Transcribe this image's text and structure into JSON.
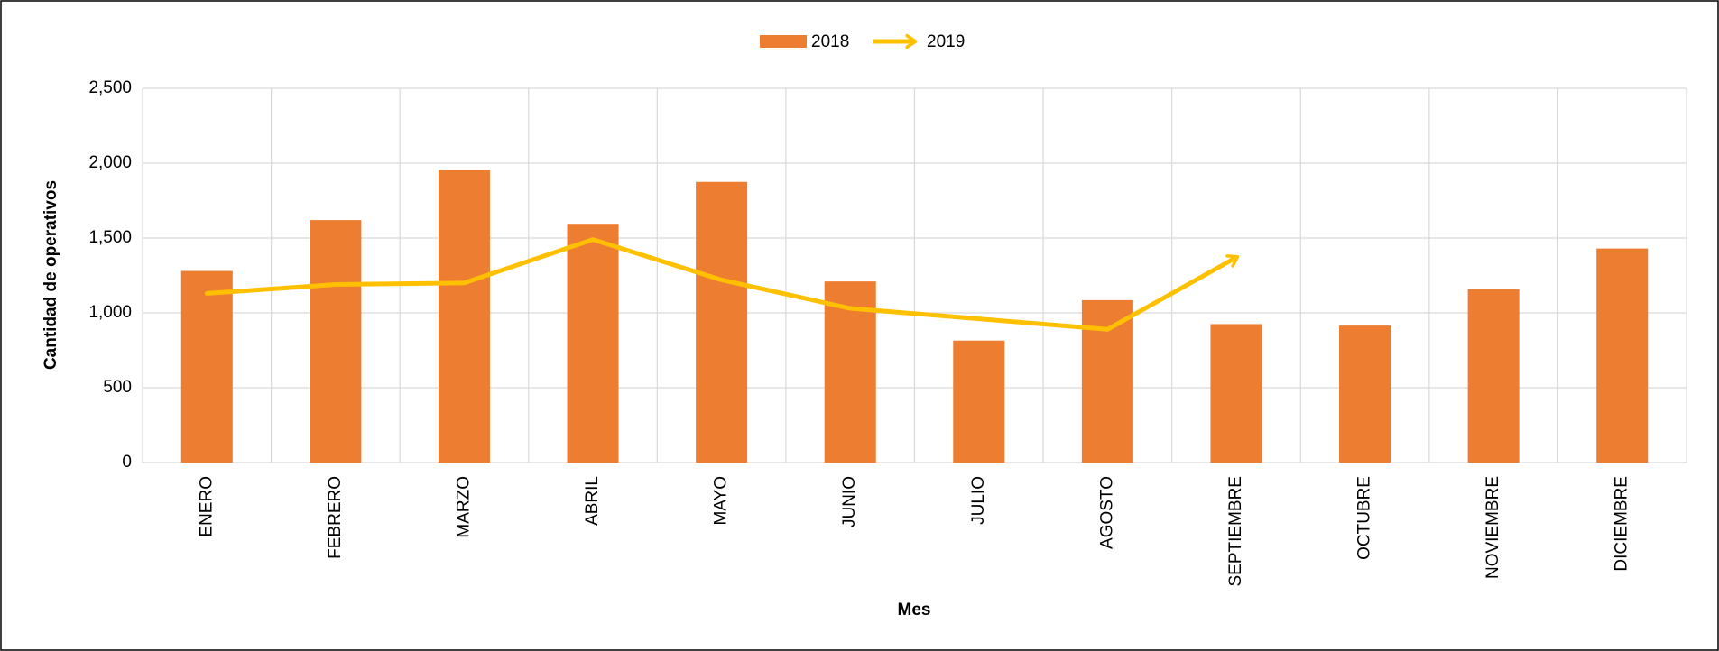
{
  "chart_data": {
    "type": "bar",
    "categories": [
      "ENERO",
      "FEBRERO",
      "MARZO",
      "ABRIL",
      "MAYO",
      "JUNIO",
      "JULIO",
      "AGOSTO",
      "SEPTIEMBRE",
      "OCTUBRE",
      "NOVIEMBRE",
      "DICIEMBRE"
    ],
    "series": [
      {
        "name": "2018",
        "type": "bar",
        "color": "#ed7d31",
        "values": [
          1280,
          1620,
          1955,
          1595,
          1875,
          1210,
          815,
          1085,
          925,
          915,
          1160,
          1430
        ]
      },
      {
        "name": "2019",
        "type": "line",
        "color": "#ffc000",
        "values": [
          1130,
          1190,
          1200,
          1490,
          1220,
          1030,
          960,
          890,
          1370,
          null,
          null,
          null
        ]
      }
    ],
    "x_label": "Mes",
    "y_label": "Cantidad de operativos",
    "ylim": [
      0,
      2500
    ],
    "yticks": [
      0,
      500,
      {
        "value": 1000,
        "label": "1,000"
      },
      {
        "value": 1500,
        "label": "1,500"
      },
      {
        "value": 2000,
        "label": "2,000"
      },
      {
        "value": 2500,
        "label": "2,500"
      }
    ],
    "grid": true,
    "legend": "top"
  }
}
